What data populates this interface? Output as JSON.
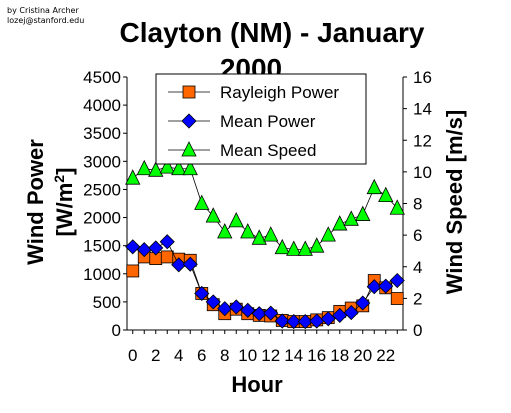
{
  "credit": {
    "line1": "by Cristina Archer",
    "line2": "lozej@stanford.edu"
  },
  "chart_data": {
    "type": "line",
    "title_line1": "Clayton (NM) - January",
    "title_line2": "2000",
    "xlabel": "Hour",
    "ylabel_left": "Wind Power [W/m2]",
    "ylabel_left_main": "Wind Power",
    "ylabel_left_unit": "[W/m",
    "ylabel_left_sup": "2",
    "ylabel_left_close": "]",
    "ylabel_right": "Wind Speed [m/s]",
    "xlim": [
      -0.5,
      23.5
    ],
    "ylim_left": [
      0,
      4500
    ],
    "ylim_right": [
      0,
      16
    ],
    "x_ticks": [
      "0",
      "2",
      "4",
      "6",
      "8",
      "10",
      "12",
      "14",
      "16",
      "18",
      "20",
      "22"
    ],
    "y_left_ticks": [
      "0",
      "500",
      "1000",
      "1500",
      "2000",
      "2500",
      "3000",
      "3500",
      "4000",
      "4500"
    ],
    "y_right_ticks": [
      "0",
      "2",
      "4",
      "6",
      "8",
      "10",
      "12",
      "14",
      "16"
    ],
    "legend_position": "top-center",
    "x": [
      0,
      1,
      2,
      3,
      4,
      5,
      6,
      7,
      8,
      9,
      10,
      11,
      12,
      13,
      14,
      15,
      16,
      17,
      18,
      19,
      20,
      21,
      22,
      23
    ],
    "series": [
      {
        "name": "Rayleigh Power",
        "axis": "left",
        "marker": "square",
        "color": "#ff6600",
        "values": [
          1050,
          1300,
          1270,
          1300,
          1260,
          1240,
          650,
          450,
          290,
          370,
          290,
          260,
          250,
          170,
          150,
          150,
          180,
          220,
          330,
          390,
          430,
          880,
          750,
          560
        ]
      },
      {
        "name": "Mean Power",
        "axis": "left",
        "marker": "diamond",
        "color": "#0000ff",
        "values": [
          1480,
          1430,
          1460,
          1570,
          1160,
          1170,
          650,
          500,
          380,
          410,
          350,
          290,
          300,
          160,
          150,
          150,
          160,
          200,
          260,
          310,
          480,
          770,
          780,
          880
        ]
      },
      {
        "name": "Mean Speed",
        "axis": "right",
        "marker": "triangle",
        "color": "#00ff00",
        "values": [
          9.6,
          10.2,
          10.1,
          10.3,
          10.2,
          10.2,
          8.0,
          7.2,
          6.2,
          6.9,
          6.2,
          5.8,
          6.0,
          5.2,
          5.1,
          5.1,
          5.3,
          6.0,
          6.7,
          7.0,
          7.3,
          9.0,
          8.5,
          7.7
        ]
      }
    ]
  }
}
